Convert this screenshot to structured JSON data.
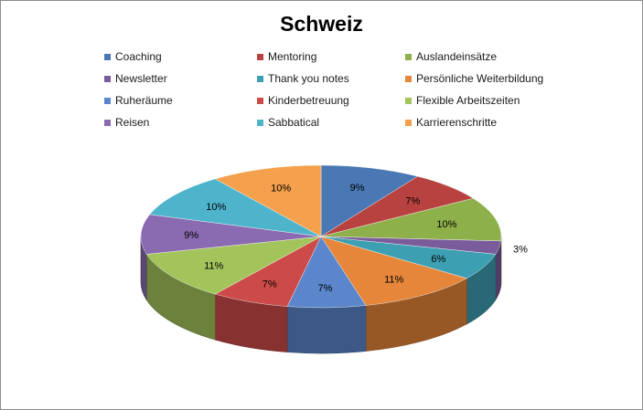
{
  "chart_data": {
    "type": "pie",
    "title": "Schweiz",
    "legend_position": "top",
    "categories": [
      "Coaching",
      "Mentoring",
      "Auslandeinsätze",
      "Newsletter",
      "Thank you notes",
      "Persönliche Weiterbildung",
      "Ruheräume",
      "Kinderbetreuung",
      "Flexible Arbeitszeiten",
      "Reisen",
      "Sabbatical",
      "Karrierenschritte"
    ],
    "values": [
      9,
      7,
      10,
      3,
      6,
      11,
      7,
      7,
      11,
      9,
      10,
      10
    ],
    "data_labels": [
      "9%",
      "7%",
      "10%",
      "3%",
      "6%",
      "11%",
      "7%",
      "7%",
      "11%",
      "9%",
      "10%",
      "10%"
    ],
    "colors": [
      "#4a78b4",
      "#b74240",
      "#8db04a",
      "#7a5b9c",
      "#3d9fb2",
      "#e5863a",
      "#5b86cc",
      "#cc4a48",
      "#a2c45b",
      "#8a6ab0",
      "#4db4cc",
      "#f4a04d"
    ]
  }
}
